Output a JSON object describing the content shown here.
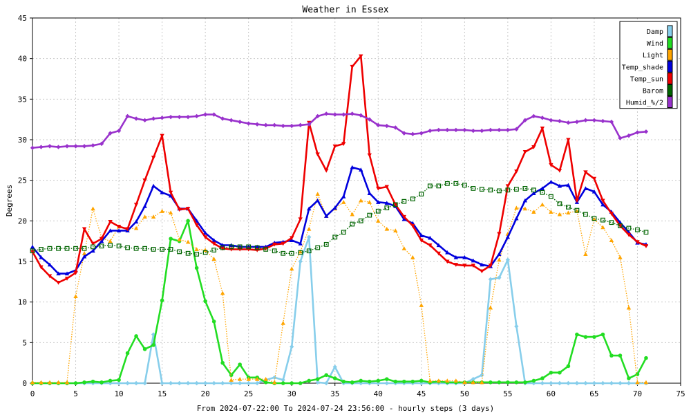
{
  "chart_data": {
    "type": "line",
    "title": "Weather in Essex",
    "ylabel": "Degrees",
    "xlabel": "From 2024-07-22:00 To 2024-07-24 23:56:00 - hourly steps (3 days)",
    "xlim": [
      0,
      75
    ],
    "ylim": [
      0,
      45
    ],
    "xticks": [
      0,
      5,
      10,
      15,
      20,
      25,
      30,
      35,
      40,
      45,
      50,
      55,
      60,
      65,
      70,
      75
    ],
    "yticks": [
      0,
      5,
      10,
      15,
      20,
      25,
      30,
      35,
      40,
      45
    ],
    "grid": true,
    "legend_position": "top-right",
    "series": [
      {
        "name": "Damp",
        "color": "#87ceeb",
        "marker": "diamond",
        "style": "solid",
        "values": [
          0,
          0,
          0,
          0,
          0,
          0,
          0,
          0,
          0,
          0,
          0,
          0,
          0,
          0,
          6,
          0,
          0,
          0,
          0,
          0,
          0,
          0,
          0,
          0,
          0,
          0,
          0,
          0.4,
          0.7,
          0.4,
          4.5,
          15.0,
          18.0,
          0.1,
          0,
          2.0,
          0,
          0,
          0,
          0,
          0,
          0,
          0,
          0,
          0,
          0,
          0,
          0,
          0,
          0,
          0,
          0.5,
          1.0,
          12.8,
          13.0,
          15.2,
          7.0,
          0,
          0,
          0,
          0,
          0,
          0,
          0,
          0,
          0,
          0,
          0,
          0,
          0,
          0,
          0
        ]
      },
      {
        "name": "Wind",
        "color": "#22dd22",
        "marker": "circle",
        "style": "solid",
        "values": [
          0,
          0,
          0,
          0,
          0,
          0,
          0.1,
          0.2,
          0.1,
          0.3,
          0.4,
          3.7,
          5.8,
          4.2,
          4.7,
          10.2,
          17.8,
          17.5,
          20.0,
          14.2,
          10.1,
          7.6,
          2.5,
          1.0,
          2.3,
          0.7,
          0.7,
          0.1,
          0,
          0,
          0,
          0,
          0.3,
          0.5,
          1.0,
          0.6,
          0.2,
          0.1,
          0.3,
          0.2,
          0.3,
          0.5,
          0.2,
          0.2,
          0.2,
          0.3,
          0.1,
          0.2,
          0.1,
          0.1,
          0.1,
          0.1,
          0.1,
          0.1,
          0.1,
          0.1,
          0.1,
          0.1,
          0.3,
          0.6,
          1.3,
          1.3,
          2.1,
          6.0,
          5.7,
          5.7,
          6.0,
          3.4,
          3.4,
          0.6,
          1.1,
          3.1
        ]
      },
      {
        "name": "Light",
        "color": "#ffa500",
        "marker": "triangle",
        "style": "dotted",
        "values": [
          0.1,
          0.1,
          0.1,
          0.1,
          0.1,
          10.7,
          16.0,
          21.5,
          17.9,
          17.5,
          19.3,
          19.0,
          19.1,
          20.5,
          20.5,
          21.2,
          21.0,
          17.7,
          17.4,
          16.5,
          16.4,
          15.3,
          11.1,
          0.4,
          0.5,
          0.5,
          0.5,
          0.5,
          0.1,
          7.4,
          14.1,
          16.2,
          19.0,
          23.3,
          20.6,
          21.5,
          22.3,
          20.8,
          22.5,
          22.3,
          20.0,
          19.0,
          18.8,
          16.6,
          15.5,
          9.6,
          0.3,
          0.3,
          0.3,
          0.3,
          0.1,
          0.1,
          0.1,
          9.3,
          15.2,
          18.4,
          21.6,
          21.5,
          21.1,
          22.0,
          21.1,
          20.8,
          21.0,
          21.2,
          15.9,
          20.2,
          19.2,
          17.6,
          15.5,
          9.3,
          0.1,
          0.1
        ]
      },
      {
        "name": "Temp_shade",
        "color": "#0000dd",
        "marker": "triangle",
        "style": "solid",
        "values": [
          16.8,
          15.5,
          14.6,
          13.5,
          13.5,
          13.9,
          15.6,
          16.3,
          17.5,
          18.8,
          18.8,
          18.8,
          19.9,
          21.8,
          24.3,
          23.5,
          23.1,
          21.5,
          21.5,
          20.0,
          18.5,
          17.6,
          17.0,
          17.0,
          16.8,
          16.8,
          16.8,
          16.8,
          17.3,
          17.4,
          17.6,
          17.2,
          21.5,
          22.5,
          20.6,
          21.6,
          23.0,
          26.6,
          26.3,
          23.4,
          22.3,
          22.2,
          21.8,
          20.2,
          19.7,
          18.2,
          17.9,
          17.0,
          16.1,
          15.5,
          15.5,
          15.1,
          14.6,
          14.4,
          15.9,
          18.0,
          20.3,
          22.5,
          23.4,
          24.0,
          24.8,
          24.3,
          24.4,
          22.3,
          24.0,
          23.6,
          22.0,
          21.1,
          19.8,
          18.6,
          17.3,
          17.1
        ]
      },
      {
        "name": "Temp_sun",
        "color": "#ee0000",
        "marker": "triangle-down",
        "style": "solid",
        "values": [
          16.2,
          14.3,
          13.2,
          12.4,
          12.9,
          13.6,
          19.0,
          17.2,
          17.8,
          19.9,
          19.3,
          19.0,
          22.0,
          25.0,
          27.8,
          30.5,
          23.5,
          21.4,
          21.5,
          19.5,
          18.0,
          17.2,
          16.6,
          16.5,
          16.5,
          16.5,
          16.4,
          16.6,
          17.1,
          17.2,
          17.9,
          20.2,
          32.1,
          28.2,
          26.2,
          29.2,
          29.5,
          39.0,
          40.3,
          28.1,
          24.0,
          24.2,
          22.0,
          20.5,
          19.4,
          17.6,
          17.0,
          16.0,
          15.0,
          14.6,
          14.5,
          14.5,
          13.8,
          14.5,
          18.4,
          24.3,
          26.1,
          28.5,
          29.1,
          31.4,
          26.9,
          26.2,
          30.0,
          22.5,
          26.0,
          25.2,
          22.5,
          20.9,
          19.4,
          18.3,
          17.4,
          16.9
        ]
      },
      {
        "name": "Barom",
        "color": "#006400",
        "marker": "square",
        "style": "dotted",
        "values": [
          16.3,
          16.5,
          16.6,
          16.6,
          16.6,
          16.6,
          16.6,
          16.8,
          16.9,
          17.0,
          16.9,
          16.7,
          16.6,
          16.6,
          16.5,
          16.5,
          16.5,
          16.2,
          16.0,
          15.9,
          16.1,
          16.4,
          16.7,
          16.8,
          16.8,
          16.8,
          16.7,
          16.5,
          16.3,
          16.0,
          16.0,
          16.1,
          16.3,
          16.7,
          17.1,
          18.0,
          18.6,
          19.6,
          20.0,
          20.7,
          21.2,
          21.6,
          22.0,
          22.4,
          22.7,
          23.3,
          24.3,
          24.3,
          24.6,
          24.6,
          24.4,
          24.0,
          23.9,
          23.8,
          23.7,
          23.8,
          23.9,
          24.0,
          23.8,
          23.5,
          23.0,
          22.1,
          21.7,
          21.3,
          20.8,
          20.3,
          20.1,
          19.8,
          19.4,
          19.1,
          18.9,
          18.6
        ]
      },
      {
        "name": "Humid_%/2",
        "color": "#9932cc",
        "marker": "diamond",
        "style": "solid",
        "values": [
          29.0,
          29.1,
          29.2,
          29.1,
          29.2,
          29.2,
          29.2,
          29.3,
          29.5,
          30.8,
          31.1,
          32.9,
          32.6,
          32.4,
          32.6,
          32.7,
          32.8,
          32.8,
          32.8,
          32.9,
          33.1,
          33.1,
          32.6,
          32.4,
          32.2,
          32.0,
          31.9,
          31.8,
          31.8,
          31.7,
          31.7,
          31.8,
          31.9,
          32.9,
          33.2,
          33.1,
          33.1,
          33.2,
          33.0,
          32.5,
          31.8,
          31.7,
          31.5,
          30.8,
          30.7,
          30.8,
          31.1,
          31.2,
          31.2,
          31.2,
          31.2,
          31.1,
          31.1,
          31.2,
          31.2,
          31.2,
          31.3,
          32.4,
          32.9,
          32.7,
          32.4,
          32.3,
          32.1,
          32.2,
          32.4,
          32.4,
          32.3,
          32.2,
          30.2,
          30.5,
          30.9,
          31.0
        ]
      }
    ]
  }
}
